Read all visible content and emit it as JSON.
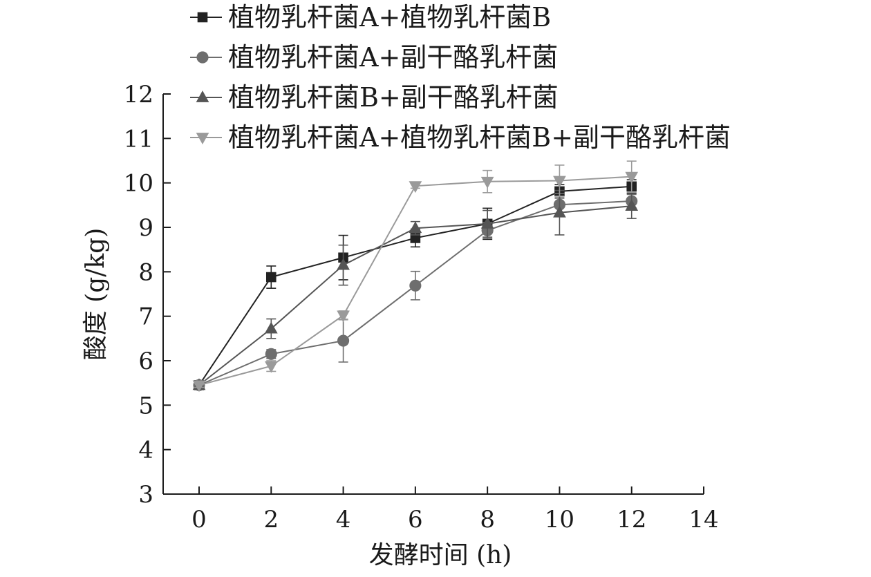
{
  "chart_data": {
    "type": "line",
    "xlabel": "发酵时间 (h)",
    "ylabel": "酸度 (g/kg)",
    "xlim": [
      0,
      14
    ],
    "ylim": [
      3,
      12
    ],
    "x_ticks": [
      0,
      2,
      4,
      6,
      8,
      10,
      12,
      14
    ],
    "y_ticks": [
      3,
      4,
      5,
      6,
      7,
      8,
      9,
      10,
      11,
      12
    ],
    "grid": false,
    "legend_position": "top",
    "error_bars": true,
    "x": [
      0,
      2,
      4,
      6,
      8,
      10,
      12
    ],
    "series": [
      {
        "name": "植物乳杆菌A+植物乳杆菌B",
        "marker": "square",
        "color": "#222222",
        "values": [
          5.45,
          7.88,
          8.32,
          8.76,
          9.08,
          9.81,
          9.92
        ],
        "errors": [
          0.05,
          0.25,
          0.5,
          0.2,
          0.35,
          0.15,
          0.15
        ]
      },
      {
        "name": "植物乳杆菌A+副干酪乳杆菌",
        "marker": "circle",
        "color": "#6e6e6e",
        "values": [
          5.45,
          6.15,
          6.45,
          7.69,
          8.93,
          9.51,
          9.59
        ],
        "errors": [
          0.05,
          0.1,
          0.48,
          0.32,
          0.18,
          0.25,
          0.15
        ]
      },
      {
        "name": "植物乳杆菌B+副干酪乳杆菌",
        "marker": "triangle-up",
        "color": "#555555",
        "values": [
          5.45,
          6.72,
          8.15,
          8.98,
          9.08,
          9.33,
          9.48
        ],
        "errors": [
          0.05,
          0.22,
          0.45,
          0.15,
          0.3,
          0.5,
          0.28
        ]
      },
      {
        "name": "植物乳杆菌A+植物乳杆菌B+副干酪乳杆菌",
        "marker": "triangle-down",
        "color": "#9a9a9a",
        "values": [
          5.45,
          5.88,
          7.02,
          9.93,
          10.03,
          10.05,
          10.14
        ],
        "errors": [
          0.05,
          0.12,
          0.1,
          0.05,
          0.25,
          0.35,
          0.35
        ]
      }
    ]
  }
}
